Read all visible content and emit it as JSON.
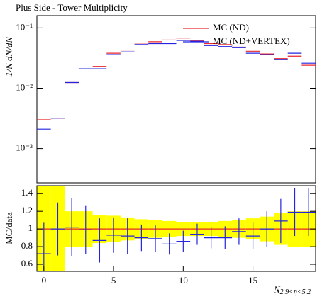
{
  "chart_data": [
    {
      "type": "histogram-points",
      "title": "Plus Side - Tower Multiplicity",
      "y_label": "1/N dN/dN",
      "log_y": true,
      "legend": "top-right",
      "xlim": [
        -0.5,
        19.5
      ],
      "ylim": [
        0.00027,
        0.16
      ],
      "yticks": [
        {
          "value": 0.001,
          "label": "10⁻³"
        },
        {
          "value": 0.01,
          "label": "10⁻²"
        },
        {
          "value": 0.1,
          "label": "10⁻¹"
        }
      ],
      "x": [
        0,
        1,
        2,
        3,
        4,
        5,
        6,
        7,
        8,
        9,
        10,
        11,
        12,
        13,
        14,
        15,
        16,
        17,
        18,
        19
      ],
      "series": [
        {
          "name": "MC (ND)",
          "color": "#e8262b",
          "values": [
            0.003,
            0.0032,
            0.0124,
            0.021,
            0.023,
            0.038,
            0.043,
            0.056,
            0.059,
            0.063,
            0.068,
            0.062,
            0.055,
            0.053,
            0.048,
            0.041,
            0.037,
            0.031,
            0.034,
            0.024
          ]
        },
        {
          "name": "MC (ND+VERTEX)",
          "color": "#2424e0",
          "values": [
            0.0021,
            0.0032,
            0.0124,
            0.021,
            0.021,
            0.036,
            0.04,
            0.053,
            0.055,
            0.055,
            0.062,
            0.06,
            0.051,
            0.049,
            0.047,
            0.038,
            0.036,
            0.03,
            0.038,
            0.026
          ]
        }
      ]
    },
    {
      "type": "ratio",
      "y_label": "MC/data",
      "x_label": "N",
      "x_label_sub": "2.9<η<5.2",
      "xlim": [
        -0.5,
        19.5
      ],
      "ylim": [
        0.52,
        1.49
      ],
      "xticks": [
        0,
        5,
        10,
        15
      ],
      "yticks": [
        0.6,
        0.8,
        1,
        1.2,
        1.4
      ],
      "x": [
        0,
        1,
        2,
        3,
        4,
        5,
        6,
        7,
        8,
        9,
        10,
        11,
        12,
        13,
        14,
        15,
        16,
        17,
        18,
        19
      ],
      "band_color": "#ffff00",
      "band": [
        0.6,
        0.6,
        0.2,
        0.2,
        0.16,
        0.15,
        0.13,
        0.11,
        0.1,
        0.09,
        0.08,
        0.08,
        0.08,
        0.09,
        0.1,
        0.12,
        0.14,
        0.18,
        0.2,
        0.2
      ],
      "series": [
        {
          "color": "#e8262b",
          "values": [
            1,
            1,
            1,
            1,
            1,
            1,
            1,
            1,
            1,
            1,
            1,
            1,
            1,
            1,
            1,
            1,
            1,
            1,
            1,
            1
          ]
        },
        {
          "color": "#2424e0",
          "values": [
            0.72,
            1.0,
            1.02,
            0.99,
            0.87,
            0.93,
            0.92,
            0.9,
            0.89,
            0.83,
            0.86,
            0.94,
            0.9,
            0.9,
            0.97,
            0.92,
            1.0,
            1.09,
            1.19,
            1.19
          ],
          "errors": [
            0.35,
            0.3,
            0.33,
            0.27,
            0.25,
            0.2,
            0.2,
            0.15,
            0.15,
            0.12,
            0.12,
            0.12,
            0.12,
            0.13,
            0.15,
            0.15,
            0.2,
            0.25,
            0.27,
            0.27
          ]
        }
      ]
    }
  ]
}
